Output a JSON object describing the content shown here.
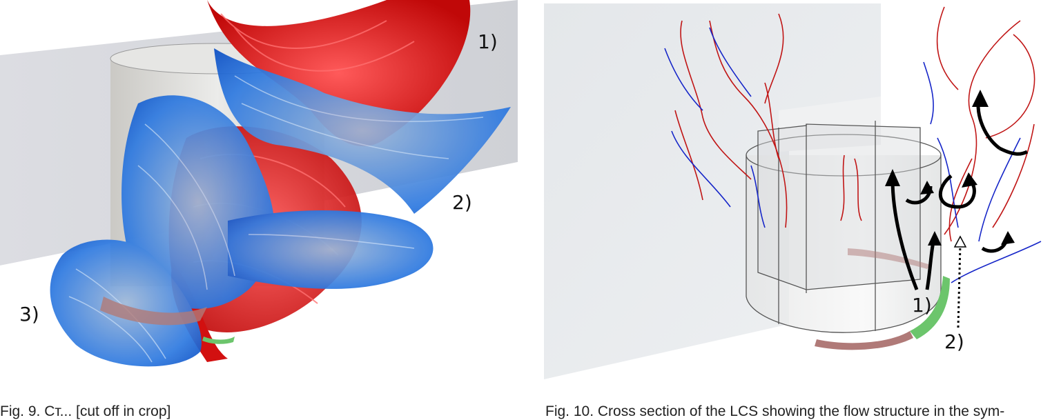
{
  "figure_left": {
    "labels": [
      "1)",
      "2)",
      "3)"
    ]
  },
  "figure_right": {
    "labels": [
      "1)",
      "2)"
    ]
  },
  "captions": {
    "left": "Fig. 9. Ст... [cut off in crop]",
    "right": "Fig. 10. Cross section of the LCS showing the flow structure in the sym-"
  },
  "colors": {
    "attracting": "#e01010",
    "repelling": "#1a6fe0",
    "wall": "#d8dade",
    "inflow_patch": "#6cc56c",
    "outflow_patch": "#b07a78",
    "arrow": "#000000"
  }
}
